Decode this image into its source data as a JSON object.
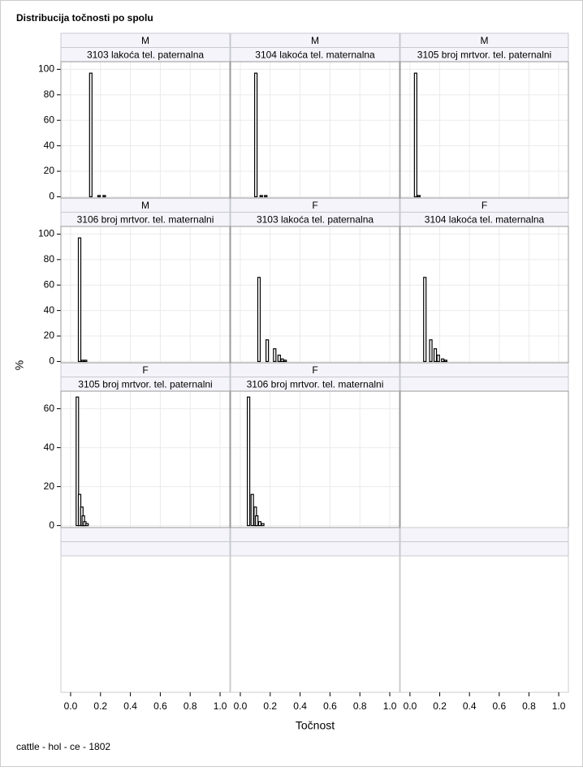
{
  "chart_data": {
    "type": "histogram-panel",
    "title": "Distribucija točnosti po spolu",
    "footnote": "cattle - hol - ce - 1802",
    "x_label": "Točnost",
    "y_label": "%",
    "xlim": [
      -0.065,
      1.065
    ],
    "xticks": [
      {
        "value": 0,
        "label": "0.0"
      },
      0.2,
      0.4,
      0.6,
      0.8,
      {
        "value": 1,
        "label": "1.0"
      }
    ],
    "grid": true,
    "color": "#000000",
    "rows": [
      {
        "ylim": [
          -1,
          106
        ],
        "yticks": [
          0,
          20,
          40,
          60,
          80,
          100
        ]
      },
      {
        "ylim": [
          -1,
          106
        ],
        "yticks": [
          0,
          20,
          40,
          60,
          80,
          100
        ]
      },
      {
        "ylim": [
          -1,
          69
        ],
        "yticks": [
          0,
          20,
          40,
          60
        ]
      }
    ],
    "panels": [
      {
        "sex": "M",
        "trait": "3103 lakoća tel. paternalna",
        "x": [
          0.135,
          0.19,
          0.225
        ],
        "values": [
          97,
          1,
          1
        ]
      },
      {
        "sex": "M",
        "trait": "3104 lakoća tel. maternalna",
        "x": [
          0.104,
          0.14,
          0.17
        ],
        "values": [
          97,
          1,
          1
        ]
      },
      {
        "sex": "M",
        "trait": "3105 broj mrtvor. tel. paternalni",
        "x": [
          0.038,
          0.06
        ],
        "values": [
          97,
          1
        ]
      },
      {
        "sex": "M",
        "trait": "3106 broj mrtvor. tel. maternalni",
        "x": [
          0.06,
          0.08,
          0.1
        ],
        "values": [
          97,
          1,
          1
        ]
      },
      {
        "sex": "F",
        "trait": "3103 lakoća tel. paternalna",
        "x": [
          0.125,
          0.18,
          0.23,
          0.26,
          0.28,
          0.3
        ],
        "values": [
          66,
          17,
          10,
          5,
          2,
          1
        ]
      },
      {
        "sex": "F",
        "trait": "3104 lakoća tel. maternalna",
        "x": [
          0.1,
          0.14,
          0.17,
          0.19,
          0.22,
          0.24
        ],
        "values": [
          66,
          17,
          10,
          5,
          2,
          1
        ]
      },
      {
        "sex": "F",
        "trait": "3105 broj mrtvor. tel. paternalni",
        "x": [
          0.045,
          0.06,
          0.075,
          0.085,
          0.095,
          0.11
        ],
        "values": [
          66,
          16,
          9.5,
          5,
          2,
          1
        ]
      },
      {
        "sex": "F",
        "trait": "3106 broj mrtvor. tel. maternalni",
        "x": [
          0.055,
          0.08,
          0.1,
          0.11,
          0.13,
          0.15
        ],
        "values": [
          66,
          16,
          9.5,
          5,
          2,
          1
        ]
      }
    ]
  }
}
